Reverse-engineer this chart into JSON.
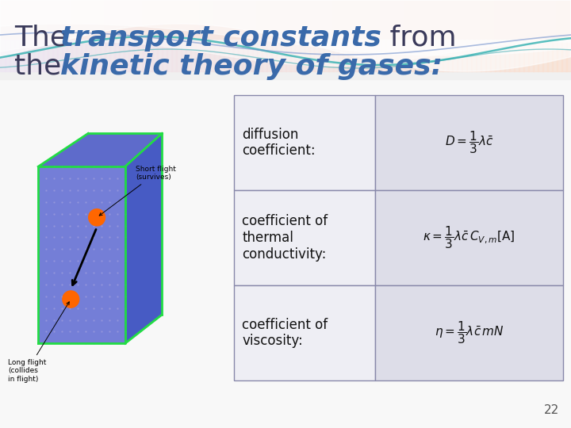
{
  "plain_color": "#3a3a5a",
  "bold_color": "#3a6aaa",
  "title_fontsize": 26,
  "bg_color": "#f8f8f8",
  "rows": [
    {
      "label": "diffusion\ncoefficient:",
      "formula": "$D = \\dfrac{1}{3}\\lambda\\bar{c}$"
    },
    {
      "label": "coefficient of\nthermal\nconductivity:",
      "formula": "$\\kappa = \\dfrac{1}{3}\\lambda\\bar{c}\\,C_{V,m}[\\mathrm{A}]$"
    },
    {
      "label": "coefficient of\nviscosity:",
      "formula": "$\\eta = \\dfrac{1}{3}\\lambda\\bar{c}\\,mN$"
    }
  ],
  "label_cell_color": "#eeeef4",
  "formula_cell_color": "#dddde8",
  "border_color": "#8888aa",
  "page_number": "22"
}
